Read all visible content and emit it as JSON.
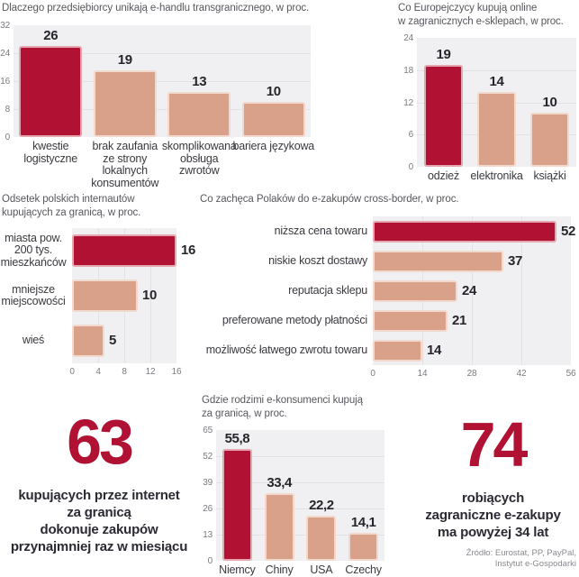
{
  "colors": {
    "accent": "#b11233",
    "bar": "#d9a189",
    "plot_bg": "#f0eff1",
    "grid": "#e2e1e5",
    "title_text": "#58575d",
    "tick_text": "#7b7a80",
    "label_text": "#3a393f",
    "value_text": "#26252b",
    "callout_text": "#2b2a33",
    "source_text": "#8a898f"
  },
  "chart_data": [
    {
      "type": "bar",
      "orientation": "vertical",
      "title": "Dlaczego przedsiębiorcy unikają e-handlu transgranicznego, w proc.",
      "categories": [
        [
          "kwestie",
          "logistyczne"
        ],
        [
          "brak zaufania",
          "ze strony",
          "lokalnych",
          "konsumentów"
        ],
        [
          "skomplikowana",
          "obsługa",
          "zwrotów"
        ],
        [
          "bariera językowa"
        ]
      ],
      "values": [
        26,
        19,
        13,
        10
      ],
      "value_labels": [
        "26",
        "19",
        "13",
        "10"
      ],
      "ylim": [
        0,
        32
      ],
      "yticks": [
        32,
        24,
        16,
        8,
        0
      ],
      "highlight_index": 0,
      "grid": true,
      "legend": false
    },
    {
      "type": "bar",
      "orientation": "vertical",
      "title": "Co Europejczycy kupują online\nw zagranicznych e-sklepach, w proc.",
      "categories": [
        [
          "odzież"
        ],
        [
          "elektronika"
        ],
        [
          "książki"
        ]
      ],
      "values": [
        19,
        14,
        10
      ],
      "value_labels": [
        "19",
        "14",
        "10"
      ],
      "ylim": [
        0,
        24
      ],
      "yticks": [
        24,
        18,
        12,
        6,
        0
      ],
      "highlight_index": 0,
      "grid": true,
      "legend": false
    },
    {
      "type": "bar",
      "orientation": "horizontal",
      "title": "Odsetek polskich internautów\nkupujących za granicą, w proc.",
      "categories": [
        [
          "miasta pow.",
          "200 tys.",
          "mieszkańców"
        ],
        [
          "mniejsze",
          "miejscowości"
        ],
        [
          "wieś"
        ]
      ],
      "values": [
        16,
        10,
        5
      ],
      "value_labels": [
        "16",
        "10",
        "5"
      ],
      "xlim": [
        0,
        16
      ],
      "xticks": [
        0,
        4,
        8,
        12,
        16
      ],
      "highlight_index": 0,
      "grid": true,
      "legend": false
    },
    {
      "type": "bar",
      "orientation": "horizontal",
      "title": "Co zachęca Polaków do e-zakupów cross-border, w proc.",
      "categories": [
        [
          "niższa cena towaru"
        ],
        [
          "niskie koszt dostawy"
        ],
        [
          "reputacja sklepu"
        ],
        [
          "preferowane metody płatności"
        ],
        [
          "możliwość łatwego zwrotu towaru"
        ]
      ],
      "values": [
        52,
        37,
        24,
        21,
        14
      ],
      "value_labels": [
        "52",
        "37",
        "24",
        "21",
        "14"
      ],
      "xlim": [
        0,
        56
      ],
      "xticks": [
        0,
        14,
        28,
        42,
        56
      ],
      "highlight_index": 0,
      "grid": true,
      "legend": false
    },
    {
      "type": "bar",
      "orientation": "vertical",
      "title": "Gdzie rodzimi e-konsumenci kupują\nza granicą, w proc.",
      "categories": [
        [
          "Niemcy"
        ],
        [
          "Chiny"
        ],
        [
          "USA"
        ],
        [
          "Czechy"
        ]
      ],
      "values": [
        55.8,
        33.4,
        22.2,
        14.1
      ],
      "value_labels": [
        "55,8",
        "33,4",
        "22,2",
        "14,1"
      ],
      "ylim": [
        0,
        65
      ],
      "yticks": [
        65,
        52,
        39,
        26,
        13,
        0
      ],
      "highlight_index": 0,
      "grid": true,
      "legend": false
    }
  ],
  "callouts": [
    {
      "number": "63",
      "lines": [
        "kupujących przez internet",
        "za granicą",
        "dokonuje zakupów",
        "przynajmniej raz w miesiącu"
      ]
    },
    {
      "number": "74",
      "lines": [
        "robiących",
        "zagraniczne e-zakupy",
        "ma powyżej 34 lat"
      ]
    }
  ],
  "source": "Źródło: Eurostat, PP, PayPal,\nInstytut e-Gospodarki"
}
